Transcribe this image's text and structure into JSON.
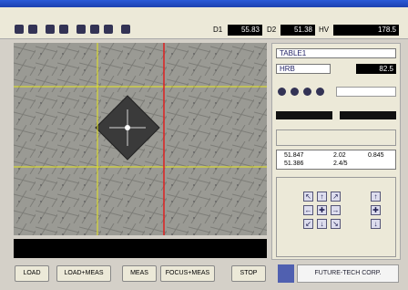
{
  "toolbar": {
    "readings": [
      {
        "label": "D1",
        "value": "55.83"
      },
      {
        "label": "D2",
        "value": "51.38"
      },
      {
        "label": "HV",
        "value": "178.5"
      }
    ]
  },
  "panel": {
    "table": "TABLE1",
    "scale": "HRB",
    "scale_value": "82.5",
    "results": [
      [
        "51.847",
        "2.02",
        "0.845"
      ],
      [
        "51.386",
        "2.4/5"
      ]
    ]
  },
  "buttons": [
    "LOAD",
    "LOAD+MEAS",
    "MEAS",
    "FOCUS+MEAS",
    "STOP"
  ],
  "footer": {
    "company": "FUTURE-TECH CORP."
  }
}
